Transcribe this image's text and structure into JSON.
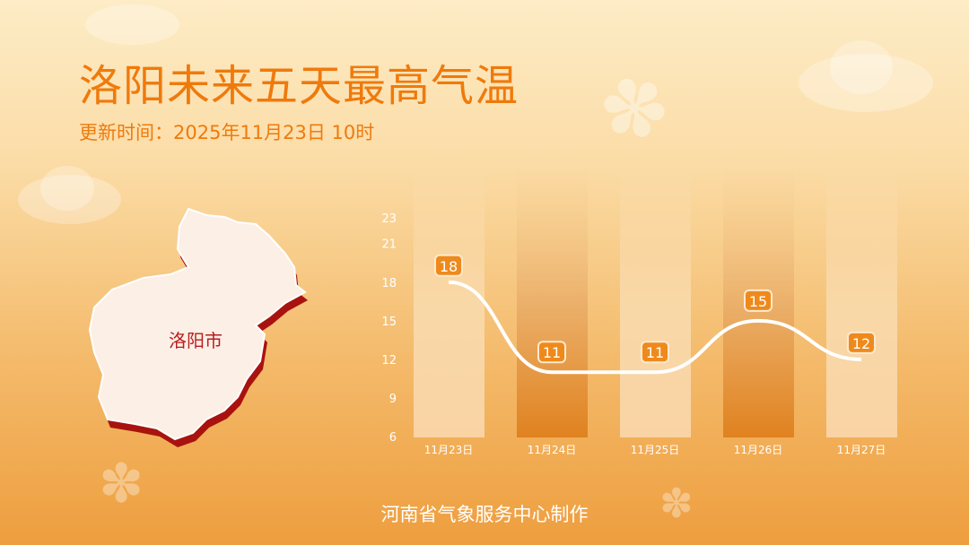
{
  "title": "洛阳未来五天最高气温",
  "update_time": "更新时间：2025年11月23日 10时",
  "map": {
    "city_label": "洛阳市",
    "fill": "#fcefe6",
    "shadow": "#a8130f"
  },
  "footer": "河南省气象服务中心制作",
  "chart_data": {
    "type": "line",
    "categories": [
      "11月23日",
      "11月24日",
      "11月25日",
      "11月26日",
      "11月27日"
    ],
    "values": [
      18,
      11,
      11,
      15,
      12
    ],
    "yticks": [
      6,
      9,
      12,
      15,
      18,
      21,
      23
    ],
    "ylim": [
      6,
      23
    ],
    "line_color": "#ffffff",
    "label_color": "#ee8a1c",
    "grid": false
  }
}
